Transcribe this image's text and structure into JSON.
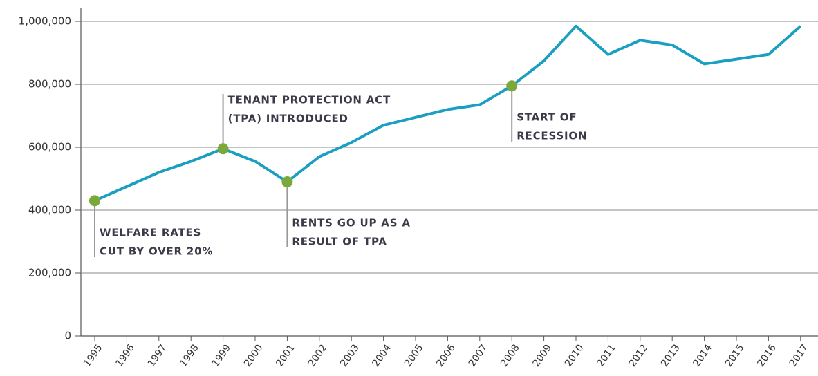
{
  "chart_data": {
    "type": "line",
    "categories": [
      "1995",
      "1996",
      "1997",
      "1998",
      "1999",
      "2000",
      "2001",
      "2002",
      "2003",
      "2004",
      "2005",
      "2006",
      "2007",
      "2008",
      "2009",
      "2010",
      "2011",
      "2012",
      "2013",
      "2014",
      "2015",
      "2016",
      "2017"
    ],
    "series": [
      {
        "color": "#1a9fc2",
        "values": [
          430000,
          475000,
          520000,
          555000,
          595000,
          555000,
          490000,
          570000,
          615000,
          670000,
          695000,
          720000,
          735000,
          795000,
          875000,
          985000,
          895000,
          940000,
          925000,
          865000,
          880000,
          895000,
          985000
        ]
      }
    ],
    "ylim": [
      0,
      1000000
    ],
    "yticks": [
      0,
      {
        "value": 200000,
        "label": "200,000"
      },
      {
        "value": 400000,
        "label": "400,000"
      },
      {
        "value": 600000,
        "label": "600,000"
      },
      {
        "value": 800000,
        "label": "800,000"
      },
      {
        "value": 1000000,
        "label": "1,000,000"
      }
    ],
    "grid": true,
    "marker_color": "#7aa83a",
    "annotations": [
      {
        "x": "1995",
        "text": [
          "WELFARE RATES",
          "CUT BY OVER 20%"
        ]
      },
      {
        "x": "1999",
        "text": [
          "TENANT PROTECTION ACT",
          "(TPA) INTRODUCED"
        ]
      },
      {
        "x": "2001",
        "text": [
          "RENTS GO UP AS A",
          "RESULT OF TPA"
        ]
      },
      {
        "x": "2008",
        "text": [
          "START OF",
          "RECESSION"
        ]
      }
    ]
  }
}
